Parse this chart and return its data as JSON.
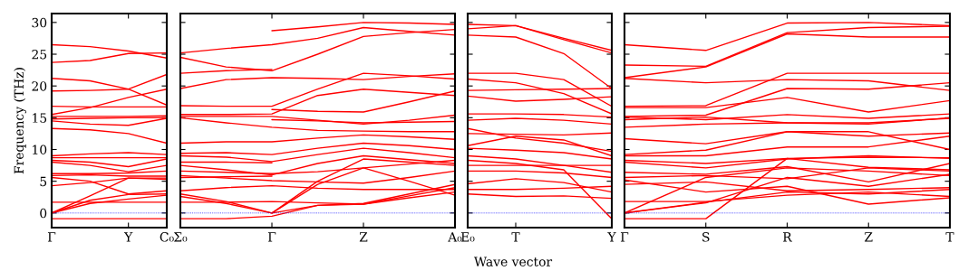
{
  "chart_data": [
    {
      "type": "line",
      "ylabel": "Frequency (THz)",
      "color": "#ff0000",
      "ylim": [
        -2.3,
        31.4
      ],
      "yticks": [
        0,
        5,
        10,
        15,
        20,
        25,
        30
      ],
      "categories": [
        "Γ",
        null,
        "Y",
        "C₀"
      ],
      "ref_lines": [
        {
          "axis": "y",
          "value": 0,
          "label": null,
          "color": "#0000ff",
          "line_style": "dotted"
        }
      ],
      "series": [
        {
          "values": [
            26.5,
            26.2,
            25.5,
            24.4
          ]
        },
        {
          "values": [
            23.7,
            24.0,
            25.1,
            25.2
          ]
        },
        {
          "values": [
            21.2,
            20.8,
            19.5,
            17.0
          ]
        },
        {
          "values": [
            19.2,
            19.3,
            19.5,
            21.8
          ]
        },
        {
          "values": [
            16.8,
            16.7,
            16.7,
            16.7
          ]
        },
        {
          "values": [
            15.5,
            16.6,
            18.2,
            19.5
          ]
        },
        {
          "values": [
            15.2,
            15.2,
            15.2,
            15.3
          ]
        },
        {
          "values": [
            14.8,
            14.9,
            15.0,
            15.0
          ]
        },
        {
          "values": [
            14.5,
            14.0,
            13.8,
            14.9
          ]
        },
        {
          "values": [
            13.3,
            13.1,
            12.5,
            11.0
          ]
        },
        {
          "values": [
            9.0,
            9.3,
            9.5,
            9.2
          ]
        },
        {
          "values": [
            8.7,
            8.7,
            8.7,
            8.7
          ]
        },
        {
          "values": [
            8.3,
            8.0,
            7.3,
            8.5
          ]
        },
        {
          "values": [
            8.0,
            7.5,
            6.5,
            7.5
          ]
        },
        {
          "values": [
            6.2,
            6.2,
            6.3,
            6.6
          ]
        },
        {
          "values": [
            5.9,
            6.0,
            5.8,
            5.8
          ]
        },
        {
          "values": [
            5.6,
            5.0,
            3.0,
            3.5
          ]
        },
        {
          "values": [
            4.3,
            4.8,
            5.5,
            5.5
          ]
        },
        {
          "values": [
            1.7,
            1.7,
            1.7,
            1.7
          ]
        },
        {
          "values": [
            0.0,
            2.7,
            5.5,
            5.3
          ]
        },
        {
          "values": [
            0.0,
            2.0,
            2.9,
            3.0
          ]
        },
        {
          "values": [
            0.0,
            1.5,
            2.2,
            2.8
          ]
        },
        {
          "values": [
            -0.9,
            -0.9,
            -0.9,
            -0.9
          ]
        }
      ]
    },
    {
      "type": "line",
      "color": "#ff0000",
      "ylim": [
        -2.3,
        31.4
      ],
      "yticks": [
        0,
        5,
        10,
        15,
        20,
        25,
        30
      ],
      "tick_labels": "x",
      "categories": [
        "Σ₀",
        null,
        "Γ",
        null,
        "Z",
        null,
        "A₀"
      ],
      "ref_lines": [
        {
          "axis": "y",
          "value": 0,
          "label": null,
          "color": "#0000ff",
          "line_style": "dotted"
        }
      ],
      "series": [
        {
          "values": [
            null,
            null,
            28.7,
            29.3,
            30.0,
            29.9,
            29.7
          ]
        },
        {
          "values": [
            25.2,
            25.9,
            26.5,
            27.5,
            29.2,
            28.6,
            28.0
          ]
        },
        {
          "values": [
            24.5,
            23.0,
            22.4,
            25.0,
            27.8,
            28.4,
            28.9
          ]
        },
        {
          "values": [
            22.0,
            22.4,
            22.6,
            null,
            null,
            null,
            null
          ]
        },
        {
          "values": [
            19.6,
            21.0,
            21.3,
            21.2,
            21.0,
            21.5,
            21.9
          ]
        },
        {
          "values": [
            16.9,
            16.8,
            16.8,
            19.5,
            22.0,
            21.6,
            21.1
          ]
        },
        {
          "values": [
            15.5,
            15.5,
            15.6,
            18.5,
            19.5,
            19.0,
            18.5
          ]
        },
        {
          "values": [
            null,
            null,
            16.3,
            16.0,
            15.9,
            17.5,
            19.2
          ]
        },
        {
          "values": [
            15.2,
            15.2,
            15.2,
            14.6,
            14.0,
            14.6,
            15.4
          ]
        },
        {
          "values": [
            null,
            null,
            14.7,
            14.5,
            14.2,
            14.3,
            14.4
          ]
        },
        {
          "values": [
            15.0,
            14.2,
            13.5,
            13.0,
            12.9,
            12.8,
            12.8
          ]
        },
        {
          "values": [
            11.0,
            11.2,
            11.2,
            11.8,
            12.3,
            12.0,
            11.6
          ]
        },
        {
          "values": [
            9.4,
            9.5,
            9.2,
            10.2,
            11.0,
            10.6,
            10.0
          ]
        },
        {
          "values": [
            9.0,
            8.8,
            8.1,
            9.2,
            10.2,
            9.5,
            8.7
          ]
        },
        {
          "values": [
            8.0,
            8.0,
            7.9,
            null,
            null,
            null,
            null
          ]
        },
        {
          "values": [
            7.5,
            6.8,
            6.0,
            7.8,
            9.0,
            8.4,
            7.8
          ]
        },
        {
          "values": [
            6.6,
            6.4,
            6.2,
            6.5,
            7.1,
            7.7,
            8.3
          ]
        },
        {
          "values": [
            5.9,
            5.5,
            5.1,
            4.9,
            4.7,
            5.6,
            6.6
          ]
        },
        {
          "values": [
            5.6,
            5.7,
            5.8,
            null,
            null,
            null,
            null
          ]
        },
        {
          "values": [
            3.5,
            4.0,
            4.3,
            3.9,
            3.7,
            3.7,
            3.7
          ]
        },
        {
          "values": [
            3.0,
            1.8,
            0.0,
            5.0,
            8.5,
            8.0,
            7.5
          ]
        },
        {
          "values": [
            2.6,
            1.5,
            0.0,
            4.5,
            7.1,
            5.0,
            2.8
          ]
        },
        {
          "values": [
            null,
            null,
            0.0,
            1.2,
            1.5,
            3.0,
            4.5
          ]
        },
        {
          "values": [
            1.7,
            1.7,
            1.8,
            1.6,
            1.4,
            2.4,
            3.3
          ]
        },
        {
          "values": [
            -0.9,
            -0.9,
            -0.5,
            1.2,
            1.4,
            2.7,
            4.0
          ]
        }
      ]
    },
    {
      "type": "line",
      "xlabel": "Wave vector",
      "color": "#ff0000",
      "ylim": [
        -2.3,
        31.4
      ],
      "yticks": [
        0,
        5,
        10,
        15,
        20,
        25,
        30
      ],
      "tick_labels": "x",
      "categories": [
        "E₀",
        "T",
        null,
        "Y"
      ],
      "ref_lines": [
        {
          "axis": "y",
          "value": 0,
          "label": null,
          "color": "#0000ff",
          "line_style": "dotted"
        }
      ],
      "series": [
        {
          "values": [
            29.7,
            29.5,
            27.5,
            25.6
          ]
        },
        {
          "values": [
            29.0,
            29.5,
            27.3,
            25.2
          ]
        },
        {
          "values": [
            28.0,
            27.7,
            25.1,
            19.6
          ]
        },
        {
          "values": [
            22.0,
            22.0,
            21.0,
            16.8
          ]
        },
        {
          "values": [
            21.1,
            20.5,
            18.8,
            15.6
          ]
        },
        {
          "values": [
            19.3,
            19.4,
            19.5,
            19.6
          ]
        },
        {
          "values": [
            18.4,
            17.6,
            17.9,
            18.3
          ]
        },
        {
          "values": [
            15.6,
            15.6,
            15.5,
            15.1
          ]
        },
        {
          "values": [
            14.6,
            14.9,
            14.6,
            14.0
          ]
        },
        {
          "values": [
            13.3,
            11.8,
            11.0,
            9.7
          ]
        },
        {
          "values": [
            12.5,
            12.4,
            12.3,
            12.6
          ]
        },
        {
          "values": [
            10.6,
            12.1,
            11.5,
            9.0
          ]
        },
        {
          "values": [
            10.2,
            9.9,
            9.5,
            8.5
          ]
        },
        {
          "values": [
            9.0,
            8.5,
            7.5,
            6.4
          ]
        },
        {
          "values": [
            7.5,
            7.5,
            7.5,
            7.5
          ]
        },
        {
          "values": [
            6.6,
            6.6,
            6.3,
            5.6
          ]
        },
        {
          "values": [
            4.6,
            5.4,
            4.8,
            3.3
          ]
        },
        {
          "values": [
            3.7,
            3.7,
            3.9,
            4.2
          ]
        },
        {
          "values": [
            3.0,
            2.6,
            2.7,
            2.3
          ]
        },
        {
          "values": [
            8.3,
            7.8,
            6.8,
            -0.9
          ]
        }
      ]
    },
    {
      "type": "line",
      "color": "#ff0000",
      "ylim": [
        -2.3,
        31.4
      ],
      "yticks": [
        0,
        5,
        10,
        15,
        20,
        25,
        30
      ],
      "tick_labels": "x",
      "categories": [
        "Γ",
        "S",
        "R",
        "Z",
        "T"
      ],
      "ref_lines": [
        {
          "axis": "y",
          "value": 0,
          "label": null,
          "color": "#0000ff",
          "line_style": "dotted"
        }
      ],
      "series": [
        {
          "values": [
            26.5,
            25.6,
            29.9,
            30.0,
            29.5
          ]
        },
        {
          "values": [
            23.3,
            23.1,
            28.4,
            29.2,
            29.4
          ]
        },
        {
          "values": [
            21.3,
            23.0,
            28.2,
            27.7,
            27.7
          ]
        },
        {
          "values": [
            21.2,
            20.5,
            21.0,
            20.8,
            19.3
          ]
        },
        {
          "values": [
            16.8,
            16.9,
            22.0,
            22.0,
            22.0
          ]
        },
        {
          "values": [
            15.2,
            15.4,
            19.6,
            19.5,
            20.5
          ]
        },
        {
          "values": [
            16.6,
            16.6,
            18.2,
            15.9,
            17.7
          ]
        },
        {
          "values": [
            15.1,
            14.7,
            15.5,
            14.9,
            15.6
          ]
        },
        {
          "values": [
            14.7,
            15.1,
            14.2,
            14.0,
            15.0
          ]
        },
        {
          "values": [
            13.5,
            14.0,
            14.2,
            14.2,
            14.9
          ]
        },
        {
          "values": [
            11.7,
            10.9,
            12.8,
            12.1,
            12.6
          ]
        },
        {
          "values": [
            9.2,
            9.9,
            12.8,
            12.8,
            10.0
          ]
        },
        {
          "values": [
            9.0,
            9.0,
            10.4,
            10.4,
            12.1
          ]
        },
        {
          "values": [
            8.3,
            7.8,
            8.6,
            7.2,
            6.8
          ]
        },
        {
          "values": [
            8.0,
            7.1,
            8.5,
            9.0,
            8.6
          ]
        },
        {
          "values": [
            6.4,
            6.1,
            7.3,
            4.9,
            7.8
          ]
        },
        {
          "values": [
            5.6,
            5.9,
            5.4,
            7.1,
            6.6
          ]
        },
        {
          "values": [
            4.5,
            4.9,
            3.5,
            3.7,
            4.0
          ]
        },
        {
          "values": [
            5.2,
            3.3,
            4.2,
            1.4,
            2.4
          ]
        },
        {
          "values": [
            0.0,
            5.6,
            7.1,
            6.6,
            5.9
          ]
        },
        {
          "values": [
            0.0,
            1.7,
            3.3,
            3.0,
            3.7
          ]
        },
        {
          "values": [
            0.0,
            1.6,
            5.6,
            4.2,
            6.1
          ]
        },
        {
          "values": [
            1.8,
            1.8,
            2.8,
            3.3,
            2.6
          ]
        },
        {
          "values": [
            -0.9,
            -0.9,
            8.6,
            8.8,
            8.7
          ]
        }
      ]
    }
  ]
}
